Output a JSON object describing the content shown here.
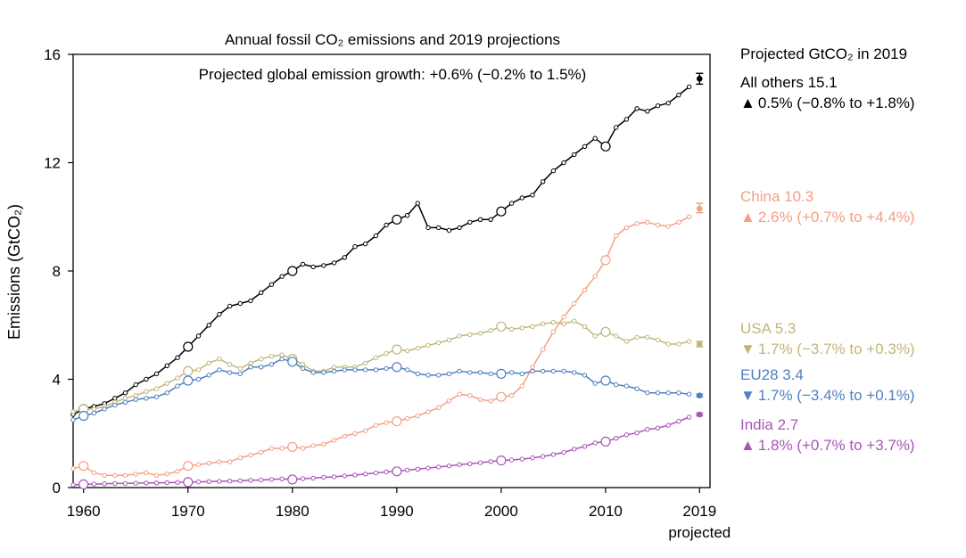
{
  "chart_data": {
    "type": "line",
    "title": "Annual fossil CO₂ emissions and 2019 projections",
    "subtitle": "Projected global emission growth: +0.6% (−0.2% to 1.5%)",
    "ylabel": "Emissions (GtCO₂)",
    "xlabel": "",
    "xlim": [
      1959,
      2020
    ],
    "ylim": [
      0,
      16
    ],
    "yticks": [
      0,
      4,
      8,
      12,
      16
    ],
    "xticks": [
      {
        "value": 1960,
        "label": "1960"
      },
      {
        "value": 1970,
        "label": "1970"
      },
      {
        "value": 1980,
        "label": "1980"
      },
      {
        "value": 1990,
        "label": "1990"
      },
      {
        "value": 2000,
        "label": "2000"
      },
      {
        "value": 2010,
        "label": "2010"
      },
      {
        "value": 2019,
        "label": "2019"
      }
    ],
    "x_extra_label": "projected",
    "grid": false,
    "legend": {
      "title": "Projected GtCO₂ in 2019",
      "placement": "right"
    },
    "years": [
      1959,
      1960,
      1961,
      1962,
      1963,
      1964,
      1965,
      1966,
      1967,
      1968,
      1969,
      1970,
      1971,
      1972,
      1973,
      1974,
      1975,
      1976,
      1977,
      1978,
      1979,
      1980,
      1981,
      1982,
      1983,
      1984,
      1985,
      1986,
      1987,
      1988,
      1989,
      1990,
      1991,
      1992,
      1993,
      1994,
      1995,
      1996,
      1997,
      1998,
      1999,
      2000,
      2001,
      2002,
      2003,
      2004,
      2005,
      2006,
      2007,
      2008,
      2009,
      2010,
      2011,
      2012,
      2013,
      2014,
      2015,
      2016,
      2017,
      2018
    ],
    "series": [
      {
        "name": "All others",
        "label": "All others 15.1",
        "growth_symbol": "▲",
        "growth_text": "0.5% (−0.8% to +1.8%)",
        "color": "#000000",
        "values": [
          2.7,
          2.9,
          3.0,
          3.1,
          3.3,
          3.5,
          3.8,
          4.0,
          4.2,
          4.5,
          4.8,
          5.2,
          5.6,
          6.0,
          6.4,
          6.7,
          6.8,
          6.9,
          7.2,
          7.5,
          7.8,
          8.0,
          8.25,
          8.15,
          8.2,
          8.3,
          8.5,
          8.9,
          9.0,
          9.3,
          9.7,
          9.9,
          10.05,
          10.5,
          9.6,
          9.6,
          9.5,
          9.6,
          9.8,
          9.9,
          9.9,
          10.2,
          10.5,
          10.7,
          10.8,
          11.3,
          11.7,
          12.0,
          12.3,
          12.6,
          12.9,
          12.6,
          13.3,
          13.6,
          14.0,
          13.9,
          14.1,
          14.2,
          14.5,
          14.8
        ],
        "open_markers": [
          1960,
          1970,
          1980,
          1990,
          2000,
          2010
        ],
        "projection": {
          "value": 15.1,
          "low": 14.9,
          "high": 15.3
        }
      },
      {
        "name": "China",
        "label": "China 10.3",
        "growth_symbol": "▲",
        "growth_text": "2.6% (+0.7% to +4.4%)",
        "color": "#f4a083",
        "values": [
          0.7,
          0.8,
          0.55,
          0.45,
          0.45,
          0.45,
          0.5,
          0.55,
          0.45,
          0.5,
          0.6,
          0.8,
          0.85,
          0.9,
          0.95,
          0.95,
          1.1,
          1.2,
          1.3,
          1.45,
          1.45,
          1.5,
          1.45,
          1.55,
          1.6,
          1.75,
          1.9,
          2.0,
          2.1,
          2.3,
          2.4,
          2.45,
          2.55,
          2.65,
          2.8,
          2.95,
          3.2,
          3.45,
          3.4,
          3.25,
          3.2,
          3.35,
          3.4,
          3.75,
          4.45,
          5.1,
          5.75,
          6.3,
          6.8,
          7.3,
          7.8,
          8.4,
          9.3,
          9.6,
          9.75,
          9.8,
          9.7,
          9.65,
          9.8,
          10.0
        ],
        "open_markers": [
          1960,
          1970,
          1980,
          1990,
          2000,
          2010
        ],
        "projection": {
          "value": 10.3,
          "low": 10.15,
          "high": 10.5
        }
      },
      {
        "name": "USA",
        "label": "USA 5.3",
        "growth_symbol": "▼",
        "growth_text": "1.7% (−3.7% to +0.3%)",
        "color": "#c0b67a",
        "values": [
          2.8,
          2.9,
          2.9,
          3.0,
          3.15,
          3.3,
          3.4,
          3.55,
          3.65,
          3.85,
          4.05,
          4.3,
          4.35,
          4.6,
          4.75,
          4.55,
          4.4,
          4.6,
          4.75,
          4.85,
          4.9,
          4.75,
          4.55,
          4.3,
          4.3,
          4.45,
          4.45,
          4.45,
          4.6,
          4.8,
          4.95,
          5.1,
          5.05,
          5.15,
          5.25,
          5.35,
          5.45,
          5.6,
          5.65,
          5.7,
          5.8,
          5.95,
          5.85,
          5.9,
          5.95,
          6.05,
          6.1,
          6.05,
          6.15,
          5.95,
          5.6,
          5.75,
          5.6,
          5.4,
          5.55,
          5.55,
          5.45,
          5.3,
          5.3,
          5.4
        ],
        "open_markers": [
          1960,
          1970,
          1980,
          1990,
          2000,
          2010
        ],
        "projection": {
          "value": 5.3,
          "low": 5.2,
          "high": 5.4
        }
      },
      {
        "name": "EU28",
        "label": "EU28 3.4",
        "growth_symbol": "▼",
        "growth_text": "1.7% (−3.4% to +0.1%)",
        "color": "#4f80c0",
        "values": [
          2.5,
          2.65,
          2.75,
          2.9,
          3.05,
          3.15,
          3.25,
          3.3,
          3.35,
          3.5,
          3.75,
          3.95,
          4.0,
          4.15,
          4.35,
          4.25,
          4.2,
          4.45,
          4.45,
          4.55,
          4.75,
          4.65,
          4.4,
          4.25,
          4.25,
          4.3,
          4.35,
          4.35,
          4.35,
          4.35,
          4.4,
          4.45,
          4.35,
          4.2,
          4.15,
          4.15,
          4.2,
          4.3,
          4.25,
          4.25,
          4.2,
          4.2,
          4.25,
          4.2,
          4.3,
          4.3,
          4.3,
          4.3,
          4.25,
          4.15,
          3.85,
          3.95,
          3.8,
          3.75,
          3.65,
          3.5,
          3.5,
          3.5,
          3.5,
          3.45
        ],
        "open_markers": [
          1960,
          1970,
          1980,
          1990,
          2000,
          2010
        ],
        "projection": {
          "value": 3.4,
          "low": 3.35,
          "high": 3.45
        }
      },
      {
        "name": "India",
        "label": "India 2.7",
        "growth_symbol": "▲",
        "growth_text": "1.8% (+0.7% to +3.7%)",
        "color": "#a855b8",
        "values": [
          0.1,
          0.12,
          0.13,
          0.14,
          0.15,
          0.15,
          0.16,
          0.17,
          0.17,
          0.18,
          0.19,
          0.2,
          0.21,
          0.22,
          0.23,
          0.24,
          0.25,
          0.27,
          0.28,
          0.3,
          0.32,
          0.3,
          0.33,
          0.35,
          0.38,
          0.4,
          0.43,
          0.46,
          0.5,
          0.54,
          0.58,
          0.6,
          0.65,
          0.68,
          0.72,
          0.76,
          0.8,
          0.85,
          0.88,
          0.92,
          0.96,
          1.0,
          1.02,
          1.05,
          1.1,
          1.15,
          1.22,
          1.3,
          1.42,
          1.52,
          1.65,
          1.7,
          1.82,
          1.95,
          2.02,
          2.15,
          2.2,
          2.3,
          2.45,
          2.6
        ],
        "open_markers": [
          1960,
          1970,
          1980,
          1990,
          2000,
          2010
        ],
        "projection": {
          "value": 2.7,
          "low": 2.65,
          "high": 2.75
        }
      }
    ]
  }
}
